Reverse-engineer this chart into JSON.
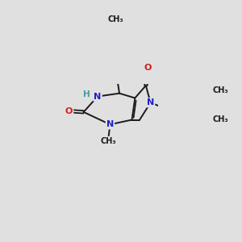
{
  "bg_color": "#e0e0e0",
  "bond_color": "#1a1a1a",
  "N_color": "#2020cc",
  "O_color": "#cc2020",
  "H_color": "#4a9a9a",
  "figsize": [
    3.0,
    3.0
  ],
  "dpi": 100,
  "xlim": [
    -2.5,
    5.5
  ],
  "ylim": [
    -3.5,
    4.5
  ]
}
